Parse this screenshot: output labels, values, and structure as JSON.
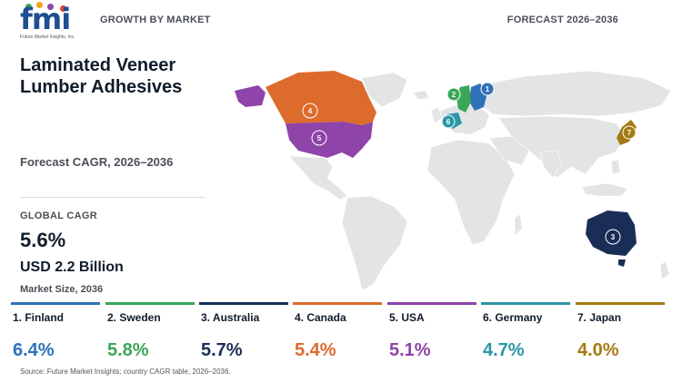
{
  "header": {
    "logo_text": "fmi",
    "logo_sub": "Future Market Insights, Inc.",
    "left_label": "GROWTH BY MARKET",
    "right_label": "FORECAST 2026–2036"
  },
  "panel": {
    "title": "Laminated Veneer Lumber Adhesives",
    "subtitle": "Forecast CAGR, 2026–2036",
    "global_label": "GLOBAL CAGR",
    "global_value": "5.6%",
    "market_size": "USD 2.2 Billion",
    "market_size_label": "Market Size, 2036"
  },
  "colors": {
    "Finland": "#2f72b8",
    "Sweden": "#3aa657",
    "Australia": "#1a2d57",
    "Canada": "#dd6b2c",
    "USA": "#8e44a8",
    "Germany": "#2a97a6",
    "Japan": "#a37b12",
    "land": "#e2e4e6"
  },
  "chart_data": {
    "type": "table",
    "countries": [
      {
        "rank": "1",
        "label": "1. Finland",
        "name": "Finland",
        "value": 6.4,
        "value_label": "6.4%"
      },
      {
        "rank": "2",
        "label": "2. Sweden",
        "name": "Sweden",
        "value": 5.8,
        "value_label": "5.8%"
      },
      {
        "rank": "3",
        "label": "3. Australia",
        "name": "Australia",
        "value": 5.7,
        "value_label": "5.7%"
      },
      {
        "rank": "4",
        "label": "4. Canada",
        "name": "Canada",
        "value": 5.4,
        "value_label": "5.4%"
      },
      {
        "rank": "5",
        "label": "5. USA",
        "name": "USA",
        "value": 5.1,
        "value_label": "5.1%"
      },
      {
        "rank": "6",
        "label": "6. Germany",
        "name": "Germany",
        "value": 4.7,
        "value_label": "4.7%"
      },
      {
        "rank": "7",
        "label": "7. Japan",
        "name": "Japan",
        "value": 4.0,
        "value_label": "4.0%"
      }
    ]
  },
  "source": "Source: Future Market Insights; country CAGR table, 2026–2036."
}
